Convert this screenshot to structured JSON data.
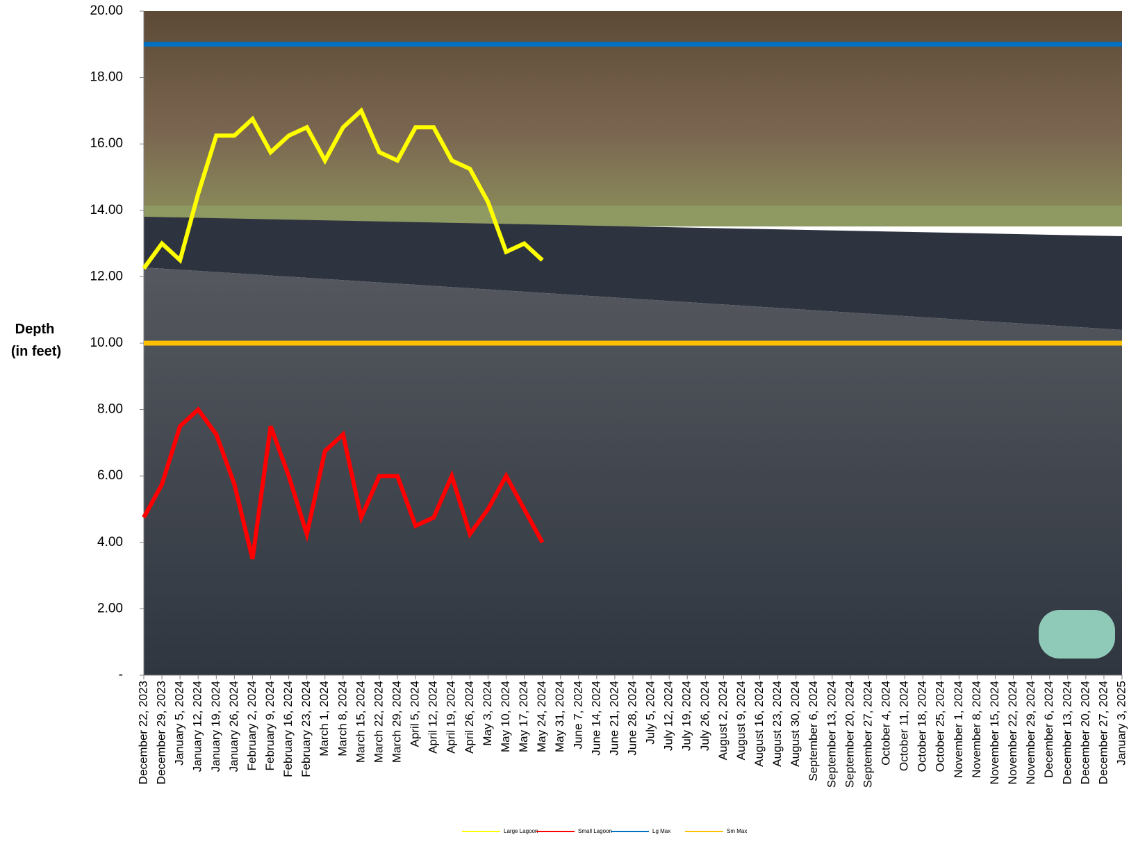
{
  "chart_data": {
    "type": "line",
    "y_label": [
      "Depth",
      "(in feet)"
    ],
    "categories": [
      "December 22, 2023",
      "December 29, 2023",
      "January 5, 2024",
      "January 12, 2024",
      "January 19, 2024",
      "January 26, 2024",
      "February 2, 2024",
      "February 9, 2024",
      "February 16, 2024",
      "February 23, 2024",
      "March 1, 2024",
      "March 8, 2024",
      "March 15, 2024",
      "March 22, 2024",
      "March 29, 2024",
      "April 5, 2024",
      "April 12, 2024",
      "April 19, 2024",
      "April 26, 2024",
      "May 3, 2024",
      "May 10, 2024",
      "May 17, 2024",
      "May 24, 2024",
      "May 31, 2024",
      "June 7, 2024",
      "June 14, 2024",
      "June 21, 2024",
      "June 28, 2024",
      "July 5, 2024",
      "July 12, 2024",
      "July 19, 2024",
      "July 26, 2024",
      "August 2, 2024",
      "August 9, 2024",
      "August 16, 2024",
      "August 23, 2024",
      "August 30, 2024",
      "September 6, 2024",
      "September 13, 2024",
      "September 20, 2024",
      "September 27, 2024",
      "October 4, 2024",
      "October 11, 2024",
      "October 18, 2024",
      "October 25, 2024",
      "November 1, 2024",
      "November 8, 2024",
      "November 15, 2024",
      "November 22, 2024",
      "November 29, 2024",
      "December 6, 2024",
      "December 13, 2024",
      "December 20, 2024",
      "December 27, 2024",
      "January 3, 2025"
    ],
    "series": [
      {
        "name": "Large Lagoon",
        "color": "#ffff00",
        "values": [
          12.25,
          13,
          12.5,
          14.5,
          16.25,
          16.25,
          16.75,
          15.75,
          16.25,
          16.5,
          15.5,
          16.5,
          17,
          15.75,
          15.5,
          16.5,
          16.5,
          15.5,
          15.25,
          14.25,
          12.75,
          13,
          12.5,
          null,
          null,
          null,
          null,
          null,
          null,
          null,
          null,
          null,
          null,
          null,
          null,
          null,
          null,
          null,
          null,
          null,
          null,
          null,
          null,
          null,
          null,
          null,
          null,
          null,
          null,
          null,
          null,
          null,
          null,
          null,
          null
        ]
      },
      {
        "name": "Small Lagoon",
        "color": "#ff0000",
        "values": [
          4.75,
          5.75,
          7.5,
          8,
          7.25,
          5.75,
          3.5,
          7.5,
          6,
          4.25,
          6.75,
          7.25,
          4.75,
          6,
          6,
          4.5,
          4.75,
          6,
          4.25,
          5,
          6,
          5,
          4,
          null,
          null,
          null,
          null,
          null,
          null,
          null,
          null,
          null,
          null,
          null,
          null,
          null,
          null,
          null,
          null,
          null,
          null,
          null,
          null,
          null,
          null,
          null,
          null,
          null,
          null,
          null,
          null,
          null,
          null,
          null,
          null
        ]
      },
      {
        "name": "Lg Max",
        "color": "#0070c0",
        "values": [
          19,
          19,
          19,
          19,
          19,
          19,
          19,
          19,
          19,
          19,
          19,
          19,
          19,
          19,
          19,
          19,
          19,
          19,
          19,
          19,
          19,
          19,
          19,
          19,
          19,
          19,
          19,
          19,
          19,
          19,
          19,
          19,
          19,
          19,
          19,
          19,
          19,
          19,
          19,
          19,
          19,
          19,
          19,
          19,
          19,
          19,
          19,
          19,
          19,
          19,
          19,
          19,
          19,
          19,
          19
        ]
      },
      {
        "name": "Sm Max",
        "color": "#ffc000",
        "values": [
          10,
          10,
          10,
          10,
          10,
          10,
          10,
          10,
          10,
          10,
          10,
          10,
          10,
          10,
          10,
          10,
          10,
          10,
          10,
          10,
          10,
          10,
          10,
          10,
          10,
          10,
          10,
          10,
          10,
          10,
          10,
          10,
          10,
          10,
          10,
          10,
          10,
          10,
          10,
          10,
          10,
          10,
          10,
          10,
          10,
          10,
          10,
          10,
          10,
          10,
          10,
          10,
          10,
          10,
          10
        ]
      }
    ],
    "ylim": [
      0,
      20
    ],
    "yticks": [
      {
        "value": 0,
        "label": "-"
      },
      {
        "value": 2,
        "label": "2.00"
      },
      {
        "value": 4,
        "label": "4.00"
      },
      {
        "value": 6,
        "label": "6.00"
      },
      {
        "value": 8,
        "label": "8.00"
      },
      {
        "value": 10,
        "label": "10.00"
      },
      {
        "value": 12,
        "label": "12.00"
      },
      {
        "value": 14,
        "label": "14.00"
      },
      {
        "value": 16,
        "label": "16.00"
      },
      {
        "value": 18,
        "label": "18.00"
      },
      {
        "value": 20,
        "label": "20.00"
      }
    ]
  }
}
